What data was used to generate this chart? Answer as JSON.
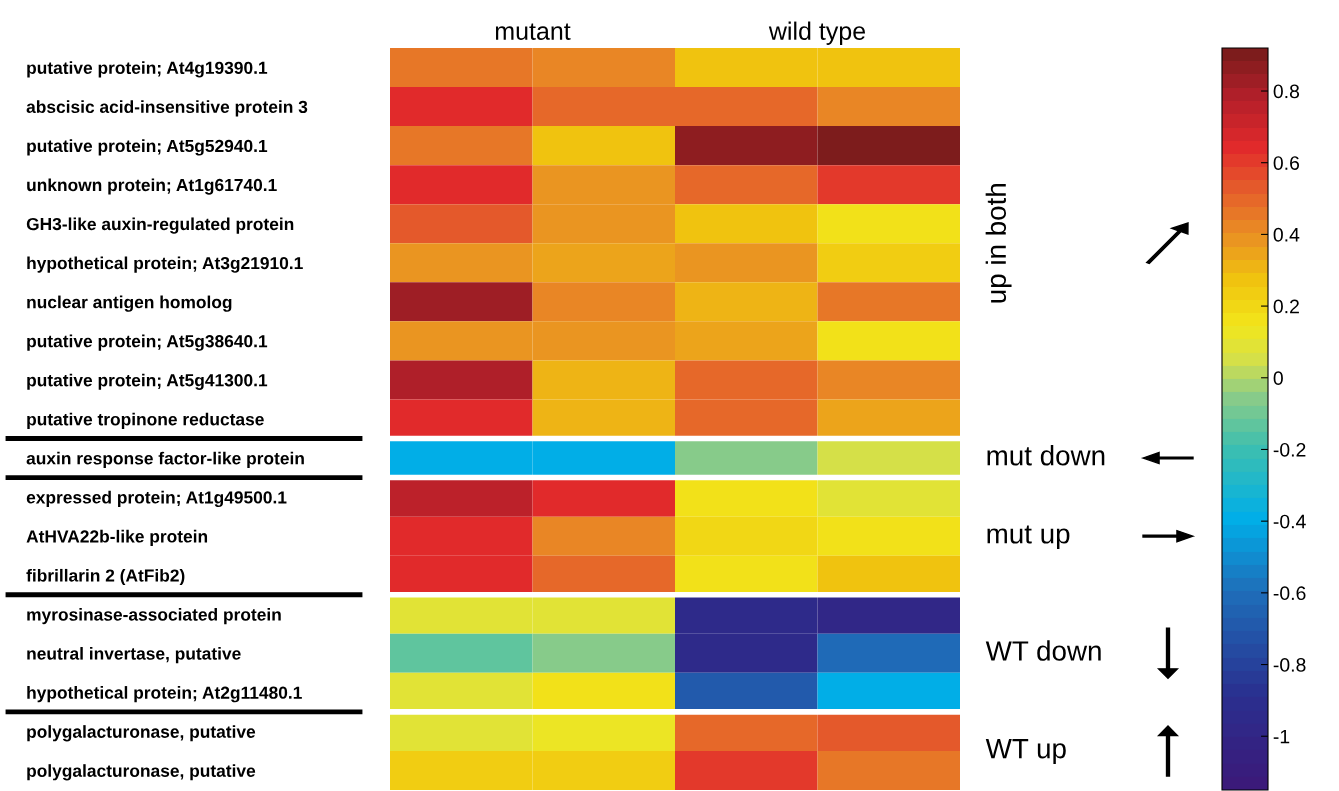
{
  "chart_data": {
    "type": "heatmap",
    "categories": [
      null,
      null,
      null,
      null
    ],
    "tick_labels": "y",
    "clim": [
      -1.15,
      0.92
    ],
    "cticks": [
      -1,
      -0.8,
      -0.6,
      -0.4,
      -0.2,
      0,
      0.2,
      0.4,
      0.6,
      0.8
    ],
    "y_categories": [
      "putative protein; At4g19390.1",
      "abscisic acid-insensitive protein 3",
      "putative protein; At5g52940.1",
      "unknown protein; At1g61740.1",
      "GH3-like auxin-regulated protein",
      "hypothetical protein; At3g21910.1",
      "nuclear antigen homolog",
      "putative protein; At5g38640.1",
      "putative protein; At5g41300.1",
      "putative tropinone reductase",
      "auxin response factor-like protein",
      "expressed protein; At1g49500.1",
      "AtHVA22b-like protein",
      "fibrillarin 2 (AtFib2)",
      "myrosinase-associated protein",
      "neutral invertase, putative",
      "hypothetical protein; At2g11480.1",
      "polygalacturonase, putative",
      "polygalacturonase, putative"
    ],
    "cells": [
      [
        0.45,
        0.42,
        0.28,
        0.28
      ],
      [
        0.65,
        0.48,
        0.5,
        0.42
      ],
      [
        0.45,
        0.28,
        0.85,
        0.9
      ],
      [
        0.65,
        0.4,
        0.5,
        0.62
      ],
      [
        0.55,
        0.4,
        0.28,
        0.18
      ],
      [
        0.38,
        0.36,
        0.38,
        0.22
      ],
      [
        0.82,
        0.42,
        0.3,
        0.46
      ],
      [
        0.4,
        0.4,
        0.36,
        0.18
      ],
      [
        0.8,
        0.32,
        0.48,
        0.42
      ],
      [
        0.65,
        0.32,
        0.48,
        0.34
      ],
      [
        -0.38,
        -0.38,
        -0.05,
        0.05
      ],
      [
        0.75,
        0.63,
        0.15,
        0.1
      ],
      [
        0.65,
        0.42,
        0.2,
        0.15
      ],
      [
        0.65,
        0.5,
        0.15,
        0.28
      ],
      [
        0.08,
        0.08,
        -0.95,
        -1.0
      ],
      [
        -0.15,
        -0.05,
        -0.95,
        -0.6
      ],
      [
        0.08,
        0.15,
        -0.7,
        -0.4
      ],
      [
        0.1,
        0.14,
        0.5,
        0.55
      ],
      [
        0.22,
        0.22,
        0.62,
        0.44
      ]
    ],
    "annotations": [
      "mutant",
      "wild type",
      "up in both",
      "mut down",
      "mut up",
      "WT down",
      "WT up"
    ]
  }
}
